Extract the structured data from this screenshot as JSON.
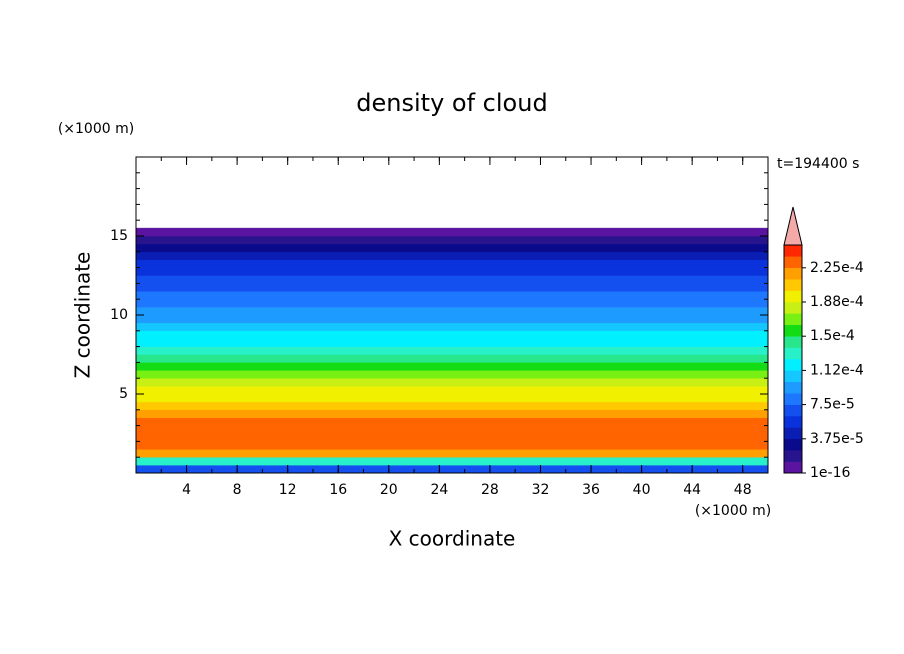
{
  "chart_data": {
    "type": "contour",
    "title": "density of cloud",
    "x_label": "X coordinate",
    "y_label": "Z coordinate",
    "x_unit": "(×1000 m)",
    "y_unit": "(×1000 m)",
    "annotation": "t=194400 s",
    "xlim": [
      0,
      50
    ],
    "xticks": [
      4,
      8,
      12,
      16,
      20,
      24,
      28,
      32,
      36,
      40,
      44,
      48
    ],
    "ylim": [
      0,
      20
    ],
    "yticks": [
      5,
      10,
      15
    ],
    "z": [
      0.25,
      0.75,
      1.25,
      1.75,
      2.25,
      2.75,
      3.25,
      3.75,
      4.25,
      4.75,
      5.25,
      5.75,
      6.25,
      6.75,
      7.25,
      7.75,
      8.25,
      8.75,
      9.25,
      9.75,
      10.25,
      10.75,
      11.25,
      11.75,
      12.25,
      12.75,
      13.25,
      13.75,
      14.25,
      14.75,
      15.25
    ],
    "values": [
      6.875e-05,
      0.00013125,
      0.00021875,
      0.00023125,
      0.00023125,
      0.00023125,
      0.00023125,
      0.00021875,
      0.00020625,
      0.00019375,
      0.00019375,
      0.00018125,
      0.00016875,
      0.00015625,
      0.00014375,
      0.00013125,
      0.00011875,
      0.00011875,
      0.00010625,
      9.375e-05,
      9.375e-05,
      8.125e-05,
      8.125e-05,
      6.875e-05,
      6.875e-05,
      5.625e-05,
      5.625e-05,
      4.375e-05,
      3.125e-05,
      1.875e-05,
      6.25e-06
    ],
    "levels": [
      1e-16,
      1.25e-05,
      2.5e-05,
      3.75e-05,
      5e-05,
      6.25e-05,
      7.5e-05,
      8.75e-05,
      0.0001,
      0.0001125,
      0.000125,
      0.0001375,
      0.00015,
      0.0001625,
      0.000175,
      0.0001875,
      0.0002,
      0.0002125,
      0.000225,
      0.0002375,
      0.00025
    ],
    "colors": [
      "#5a14a0",
      "#28148c",
      "#0a0a8c",
      "#0a1eb4",
      "#0a32dc",
      "#1450f0",
      "#1e78ff",
      "#1e9bff",
      "#14c8ff",
      "#00f0ff",
      "#28f0c8",
      "#28e68c",
      "#14dc14",
      "#78f014",
      "#c8f014",
      "#f0f000",
      "#ffc800",
      "#ffa000",
      "#ff6400",
      "#ff2800"
    ],
    "extend_color": "#f5aaaa",
    "colorbar_ticks": [
      {
        "value": 1e-16,
        "label": "1e-16"
      },
      {
        "value": 3.75e-05,
        "label": "3.75e-5"
      },
      {
        "value": 7.5e-05,
        "label": "7.5e-5"
      },
      {
        "value": 0.0001125,
        "label": "1.12e-4"
      },
      {
        "value": 0.00015,
        "label": "1.5e-4"
      },
      {
        "value": 0.0001875,
        "label": "1.88e-4"
      },
      {
        "value": 0.000225,
        "label": "2.25e-4"
      }
    ]
  }
}
